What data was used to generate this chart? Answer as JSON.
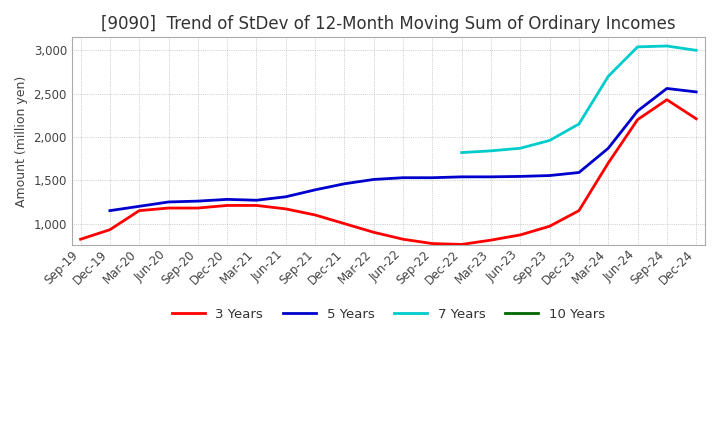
{
  "title": "[9090]  Trend of StDev of 12-Month Moving Sum of Ordinary Incomes",
  "ylabel": "Amount (million yen)",
  "ylim": [
    750,
    3150
  ],
  "yticks": [
    1000,
    1500,
    2000,
    2500,
    3000
  ],
  "line_colors": {
    "3 Years": "#ff0000",
    "5 Years": "#0000cc",
    "7 Years": "#00cccc",
    "10 Years": "#006600"
  },
  "x_labels": [
    "Sep-19",
    "Dec-19",
    "Mar-20",
    "Jun-20",
    "Sep-20",
    "Dec-20",
    "Mar-21",
    "Jun-21",
    "Sep-21",
    "Dec-21",
    "Mar-22",
    "Jun-22",
    "Sep-22",
    "Dec-22",
    "Mar-23",
    "Jun-23",
    "Sep-23",
    "Dec-23",
    "Mar-24",
    "Jun-24",
    "Sep-24",
    "Dec-24"
  ],
  "series_3y": [
    820,
    930,
    1150,
    1180,
    1180,
    1210,
    1210,
    1170,
    1100,
    1000,
    900,
    820,
    770,
    760,
    810,
    870,
    970,
    1150,
    1700,
    2200,
    2430,
    2210
  ],
  "series_5y": [
    null,
    1150,
    1200,
    1250,
    1260,
    1280,
    1270,
    1310,
    1390,
    1460,
    1510,
    1530,
    1530,
    1540,
    1540,
    1545,
    1555,
    1590,
    1870,
    2300,
    2560,
    2520
  ],
  "series_7y": [
    null,
    null,
    null,
    null,
    null,
    null,
    null,
    null,
    null,
    null,
    null,
    null,
    null,
    1820,
    1840,
    1870,
    1960,
    2150,
    2700,
    3040,
    3050,
    3000
  ],
  "series_10y": [
    null,
    null,
    null,
    null,
    null,
    null,
    null,
    null,
    null,
    null,
    null,
    null,
    null,
    null,
    null,
    null,
    null,
    null,
    null,
    null,
    null,
    null
  ],
  "background_color": "#ffffff",
  "grid_color": "#aaaaaa",
  "title_fontsize": 12,
  "axis_fontsize": 9,
  "tick_fontsize": 8.5
}
